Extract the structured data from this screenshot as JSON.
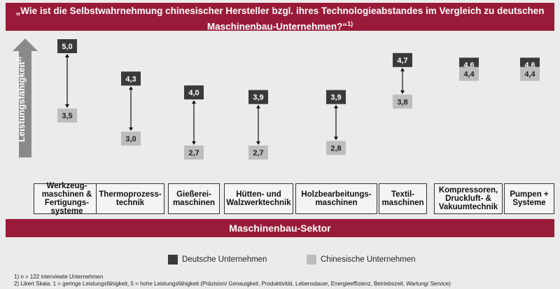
{
  "header": {
    "title_line1": "„Wie ist die Selbstwahrnehmung chinesischer Hersteller bzgl. ihres Technologieabstandes im Vergleich zu deutschen",
    "title_line2": "Maschinenbau-Unternehmen?“",
    "title_sup": "1)"
  },
  "axis": {
    "label": "Leistungsfähigkeit",
    "label_sup": "2)"
  },
  "sector_label": "Maschinenbau-Sektor",
  "legend": {
    "german": "Deutsche Unternehmen",
    "chinese": "Chinesische Unternehmen"
  },
  "footnotes": {
    "note1": "1) n = 122 interviewte Unternehmen",
    "note2": "2) Likert Skala: 1 = geringe Leistungsfähigkeit, 5 = hohe Leistungsfähigkeit (Präzision/ Genauigkeit, Produktivität, Lebensdauer, Energieeffizienz, Betriebszeit, Wartung/ Service)"
  },
  "colors": {
    "brand": "#9a1b39",
    "german": "#3a3a3a",
    "chinese": "#bdbdbd",
    "arrow": "#8a8a8a"
  },
  "chart_data": {
    "type": "dumbbell",
    "categories": [
      "Werkzeug-\nmaschinen &\nFertigungs-\nsysteme",
      "Thermoprozess-\ntechnik",
      "Gießerei-\nmaschinen",
      "Hütten- und\nWalzwerktechnik",
      "Holzbearbeitungs-\nmaschinen",
      "Textil-\nmaschinen",
      "Kompressoren,\nDruckluft- &\nVakuumtechnik",
      "Pumpen +\nSysteme"
    ],
    "series": [
      {
        "name": "Deutsche Unternehmen",
        "values": [
          5.0,
          4.3,
          4.0,
          3.9,
          3.9,
          4.7,
          4.6,
          4.6
        ],
        "labels": [
          "5,0",
          "4,3",
          "4,0",
          "3,9",
          "3,9",
          "4,7",
          "4,6",
          "4,6"
        ]
      },
      {
        "name": "Chinesische Unternehmen",
        "values": [
          3.5,
          3.0,
          2.7,
          2.7,
          2.8,
          3.8,
          4.4,
          4.4
        ],
        "labels": [
          "3,5",
          "3,0",
          "2,7",
          "2,7",
          "2,8",
          "3,8",
          "4,4",
          "4,4"
        ]
      }
    ],
    "ylabel": "Leistungsfähigkeit",
    "ylim": [
      2.0,
      5.3
    ],
    "grid": false,
    "legend": "bottom"
  }
}
